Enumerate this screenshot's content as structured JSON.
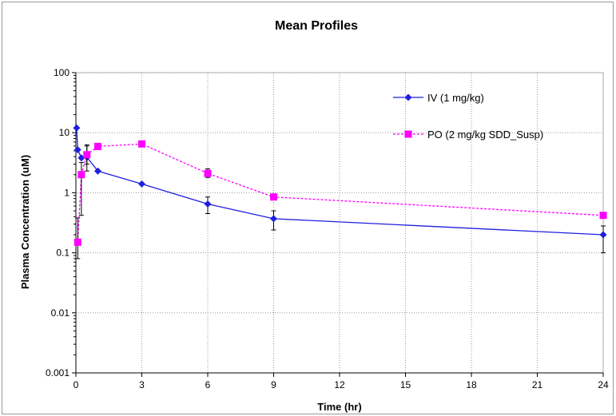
{
  "chart_data": {
    "type": "line",
    "title": "Mean Profiles",
    "xlabel": "Time (hr)",
    "ylabel": "Plasma Concentration (uM)",
    "xlim": [
      0,
      24
    ],
    "ylim": [
      0.001,
      100
    ],
    "yscale": "log",
    "x_ticks": [
      0,
      3,
      6,
      9,
      12,
      15,
      18,
      21,
      24
    ],
    "y_ticks": [
      0.001,
      0.01,
      0.1,
      1,
      10,
      100
    ],
    "y_tick_labels": [
      "0.001",
      "0.01",
      "0.1",
      "1",
      "10",
      "100"
    ],
    "grid": true,
    "legend_position": "top-right",
    "series": [
      {
        "name": "IV (1 mg/kg)",
        "color": "#1f1fe0",
        "marker": "diamond",
        "line_style": "solid",
        "x": [
          0.033,
          0.083,
          0.25,
          0.5,
          1,
          3,
          6,
          9,
          24
        ],
        "y": [
          12,
          5.2,
          3.8,
          3.9,
          2.3,
          1.4,
          0.65,
          0.37,
          0.2
        ],
        "err_low": [
          null,
          null,
          null,
          2.3,
          null,
          null,
          0.45,
          0.24,
          0.1
        ],
        "err_high": [
          null,
          null,
          null,
          6.3,
          null,
          null,
          0.85,
          0.5,
          0.28
        ]
      },
      {
        "name": "PO (2 mg/kg SDD_Susp)",
        "color": "#ff00ff",
        "marker": "square",
        "line_style": "dashed",
        "x": [
          0.083,
          0.25,
          0.5,
          1,
          3,
          6,
          9,
          24
        ],
        "y": [
          0.15,
          2.0,
          4.3,
          5.9,
          6.5,
          2.1,
          0.85,
          0.42
        ],
        "err_low": [
          0.08,
          0.42,
          3.0,
          null,
          null,
          1.8,
          null,
          null
        ],
        "err_high": [
          0.38,
          3.2,
          6.0,
          null,
          null,
          2.5,
          null,
          null
        ]
      }
    ]
  }
}
